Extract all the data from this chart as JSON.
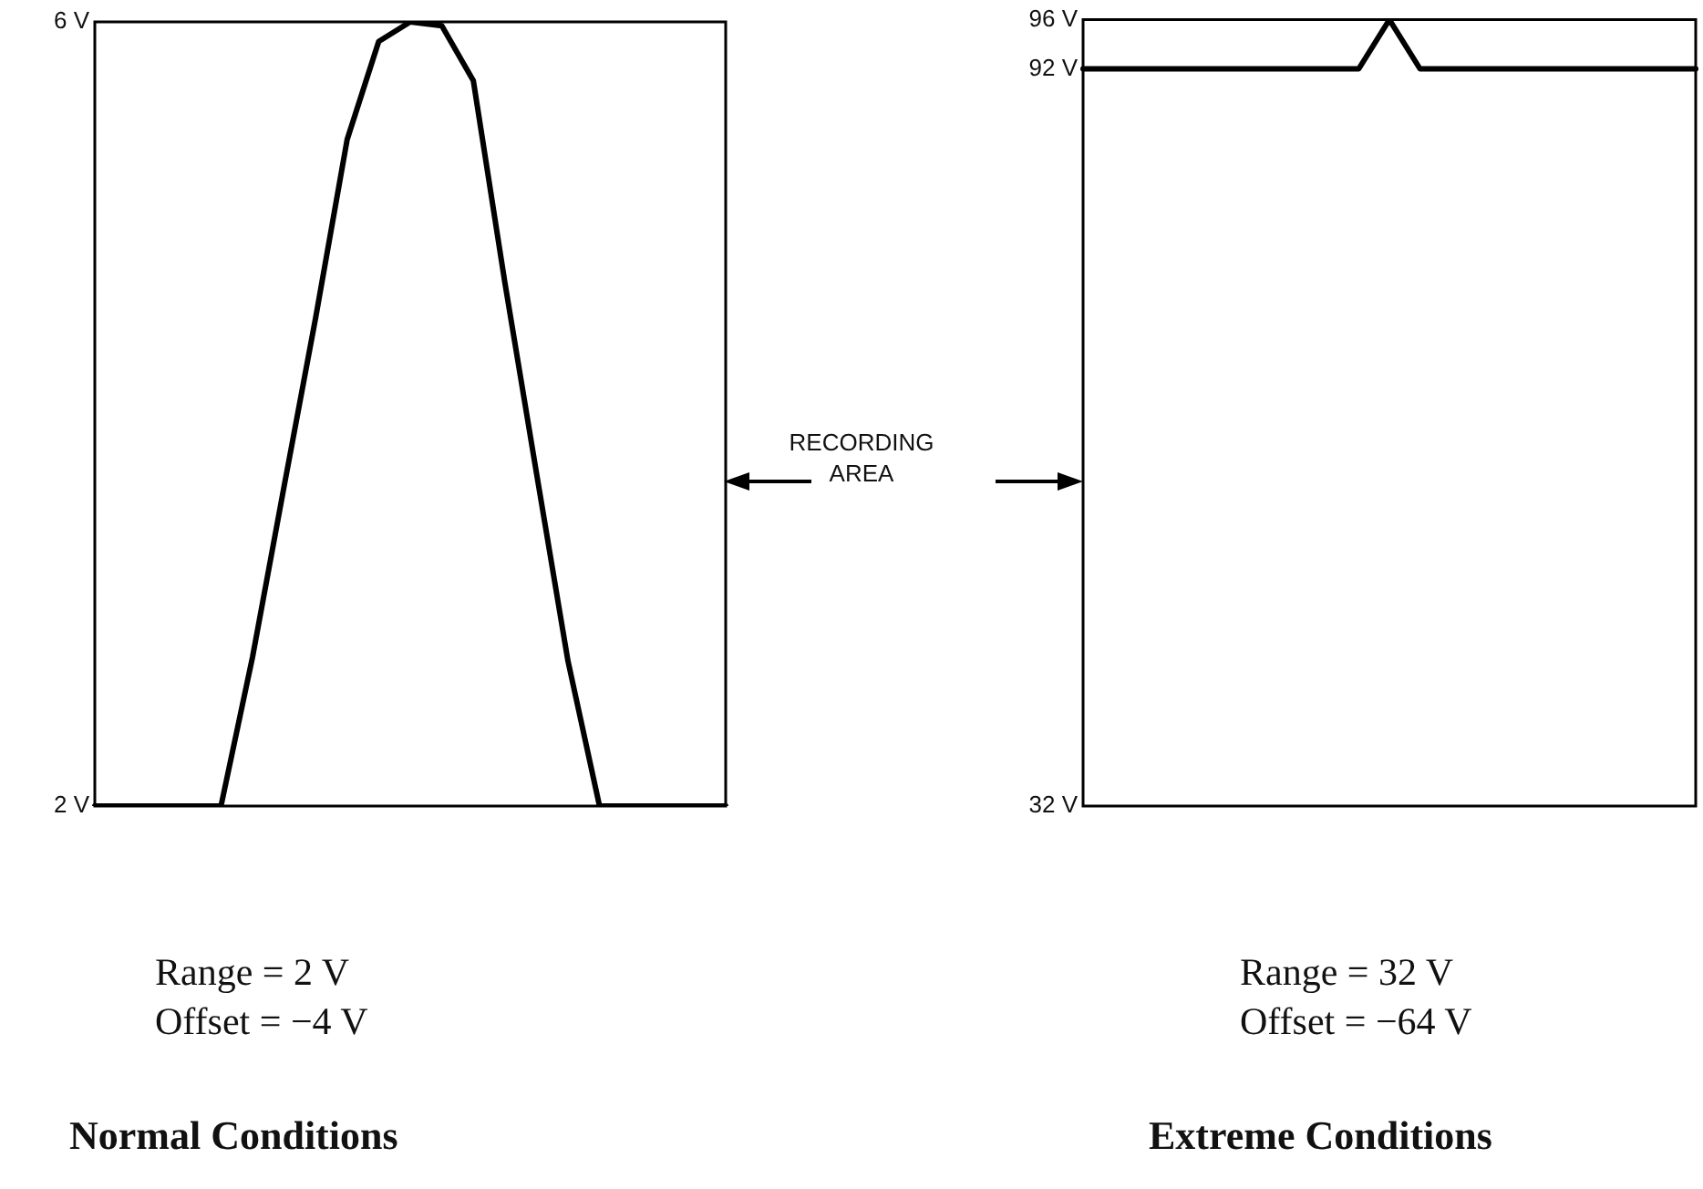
{
  "chart_data": [
    {
      "type": "line",
      "title": "Normal Conditions",
      "categories": [
        null,
        null,
        null,
        null,
        null,
        null,
        null,
        null,
        null,
        null,
        null,
        null,
        null,
        null,
        null,
        null,
        null,
        null,
        null,
        null,
        null
      ],
      "series": [
        {
          "color": "#000000",
          "values": [
            2,
            2,
            2,
            2,
            2,
            2.76,
            3.63,
            4.49,
            5.4,
            5.9,
            6,
            5.98,
            5.7,
            4.67,
            3.7,
            2.74,
            2,
            2,
            2,
            2,
            2
          ]
        }
      ],
      "ylim": [
        2,
        6
      ],
      "yticks": [
        {
          "value": 2,
          "label": "2 V"
        },
        {
          "value": 6,
          "label": "6 V"
        }
      ],
      "grid": false,
      "legend": false,
      "marker": "none",
      "line_style": "solid",
      "annotations": [
        "Range = 2 V",
        "Offset = −4 V",
        "RECORDING AREA"
      ]
    },
    {
      "type": "line",
      "title": "Extreme Conditions",
      "categories": [
        null,
        null,
        null,
        null,
        null,
        null,
        null,
        null,
        null,
        null,
        null,
        null,
        null,
        null,
        null,
        null,
        null,
        null,
        null,
        null,
        null
      ],
      "series": [
        {
          "color": "#000000",
          "values": [
            92,
            92,
            92,
            92,
            92,
            92,
            92,
            92,
            92,
            92,
            96,
            92,
            92,
            92,
            92,
            92,
            92,
            92,
            92,
            92,
            92
          ]
        }
      ],
      "ylim": [
        32,
        96
      ],
      "yticks": [
        {
          "value": 32,
          "label": "32 V"
        },
        {
          "value": 92,
          "label": "92 V"
        },
        {
          "value": 96,
          "label": "96 V"
        }
      ],
      "grid": false,
      "legend": false,
      "marker": "none",
      "line_style": "solid",
      "annotations": [
        "Range = 32 V",
        "Offset = −64 V"
      ]
    }
  ]
}
